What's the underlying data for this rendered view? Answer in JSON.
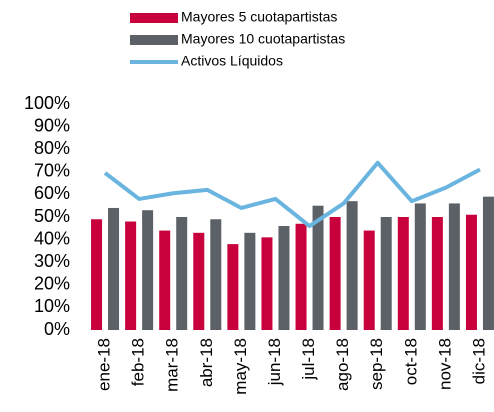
{
  "chart_data": {
    "type": "bar_line",
    "categories": [
      "ene-18",
      "feb-18",
      "mar-18",
      "abr-18",
      "may-18",
      "jun-18",
      "jul-18",
      "ago-18",
      "sep-18",
      "oct-18",
      "nov-18",
      "dic-18"
    ],
    "series": [
      {
        "name": "Mayores 5 cuotapartistas",
        "type": "bar",
        "color": "#c8003c",
        "values": [
          49,
          48,
          44,
          43,
          38,
          41,
          47,
          50,
          44,
          50,
          50,
          51
        ]
      },
      {
        "name": "Mayores 10 cuotapartistas",
        "type": "bar",
        "color": "#5b6166",
        "values": [
          54,
          53,
          50,
          49,
          43,
          46,
          55,
          57,
          50,
          56,
          56,
          59
        ]
      },
      {
        "name": "Activos Líquidos",
        "type": "line",
        "color": "#6ab4e0",
        "values": [
          69.5,
          58,
          60.5,
          62,
          54,
          58,
          46,
          56,
          74,
          57,
          63,
          71
        ]
      }
    ],
    "ylim": [
      0,
      100
    ],
    "yticks": [
      {
        "value": 0,
        "label": "0%"
      },
      {
        "value": 10,
        "label": "10%"
      },
      {
        "value": 20,
        "label": "20%"
      },
      {
        "value": 30,
        "label": "30%"
      },
      {
        "value": 40,
        "label": "40%"
      },
      {
        "value": 50,
        "label": "50%"
      },
      {
        "value": 60,
        "label": "60%"
      },
      {
        "value": 70,
        "label": "70%"
      },
      {
        "value": 80,
        "label": "80%"
      },
      {
        "value": 90,
        "label": "90%"
      },
      {
        "value": 100,
        "label": "100%"
      }
    ],
    "grid": false
  }
}
